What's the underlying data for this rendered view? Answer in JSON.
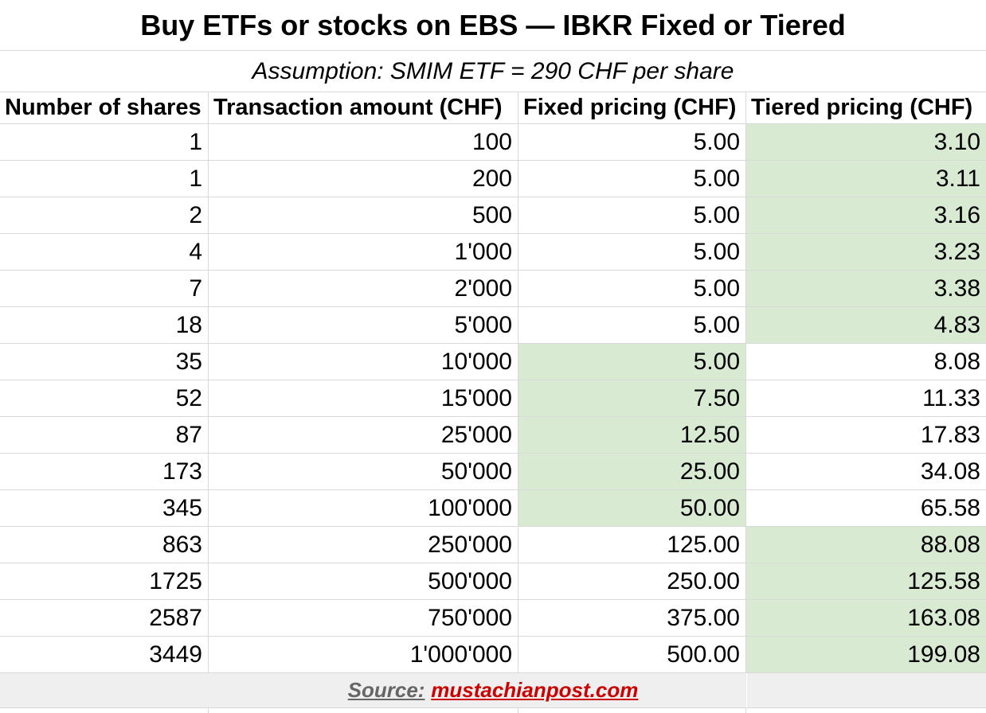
{
  "chart_data": {
    "type": "table",
    "title": "Buy ETFs or stocks on EBS — IBKR Fixed or Tiered",
    "subtitle": "Assumption: SMIM ETF = 290 CHF per share",
    "columns": [
      "Number of shares",
      "Transaction amount (CHF)",
      "Fixed pricing (CHF)",
      "Tiered pricing (CHF)"
    ],
    "rows": [
      {
        "shares": "1",
        "amount": "100",
        "fixed": "5.00",
        "tiered": "3.10",
        "cheaper": "tiered"
      },
      {
        "shares": "1",
        "amount": "200",
        "fixed": "5.00",
        "tiered": "3.11",
        "cheaper": "tiered"
      },
      {
        "shares": "2",
        "amount": "500",
        "fixed": "5.00",
        "tiered": "3.16",
        "cheaper": "tiered"
      },
      {
        "shares": "4",
        "amount": "1'000",
        "fixed": "5.00",
        "tiered": "3.23",
        "cheaper": "tiered"
      },
      {
        "shares": "7",
        "amount": "2'000",
        "fixed": "5.00",
        "tiered": "3.38",
        "cheaper": "tiered"
      },
      {
        "shares": "18",
        "amount": "5'000",
        "fixed": "5.00",
        "tiered": "4.83",
        "cheaper": "tiered"
      },
      {
        "shares": "35",
        "amount": "10'000",
        "fixed": "5.00",
        "tiered": "8.08",
        "cheaper": "fixed"
      },
      {
        "shares": "52",
        "amount": "15'000",
        "fixed": "7.50",
        "tiered": "11.33",
        "cheaper": "fixed"
      },
      {
        "shares": "87",
        "amount": "25'000",
        "fixed": "12.50",
        "tiered": "17.83",
        "cheaper": "fixed"
      },
      {
        "shares": "173",
        "amount": "50'000",
        "fixed": "25.00",
        "tiered": "34.08",
        "cheaper": "fixed"
      },
      {
        "shares": "345",
        "amount": "100'000",
        "fixed": "50.00",
        "tiered": "65.58",
        "cheaper": "fixed"
      },
      {
        "shares": "863",
        "amount": "250'000",
        "fixed": "125.00",
        "tiered": "88.08",
        "cheaper": "tiered"
      },
      {
        "shares": "1725",
        "amount": "500'000",
        "fixed": "250.00",
        "tiered": "125.58",
        "cheaper": "tiered"
      },
      {
        "shares": "2587",
        "amount": "750'000",
        "fixed": "375.00",
        "tiered": "163.08",
        "cheaper": "tiered"
      },
      {
        "shares": "3449",
        "amount": "1'000'000",
        "fixed": "500.00",
        "tiered": "199.08",
        "cheaper": "tiered"
      }
    ],
    "highlight_rule": "green cell marks the cheaper pricing option in each row",
    "grid": true,
    "legend_position": "none"
  },
  "footer": {
    "source_label": "Source:",
    "source_link": "mustachianpost.com"
  },
  "colors": {
    "highlight_green": "#d9ead3",
    "gridline": "#d9d9d9",
    "footer_bg": "#efefef",
    "source_gray": "#666666",
    "source_red": "#cc0000",
    "text": "#000000",
    "background": "#ffffff"
  }
}
